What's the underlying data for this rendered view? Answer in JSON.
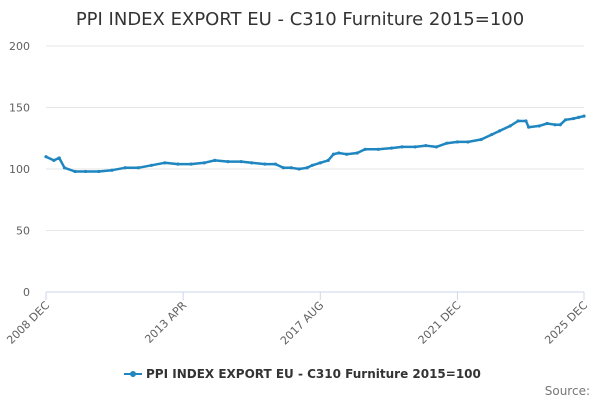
{
  "chart_data": {
    "type": "line",
    "title": "PPI INDEX EXPORT EU - C310 Furniture 2015=100",
    "xlabel": "",
    "ylabel": "",
    "ylim": [
      0,
      200
    ],
    "yticks": [
      0,
      50,
      100,
      150,
      200
    ],
    "xlim": [
      "2008-12",
      "2025-12"
    ],
    "xticks": [
      "2008 DEC",
      "2013 APR",
      "2017 AUG",
      "2021 DEC",
      "2025 DEC"
    ],
    "grid": true,
    "legend_position": "bottom",
    "series": [
      {
        "name": "PPI INDEX EXPORT EU - C310 Furniture 2015=100",
        "color": "#1f86c0",
        "points": [
          [
            "2008-12",
            110
          ],
          [
            "2009-03",
            107
          ],
          [
            "2009-05",
            109
          ],
          [
            "2009-07",
            101
          ],
          [
            "2009-11",
            98
          ],
          [
            "2010-03",
            98
          ],
          [
            "2010-08",
            98
          ],
          [
            "2011-01",
            99
          ],
          [
            "2011-06",
            101
          ],
          [
            "2011-11",
            101
          ],
          [
            "2012-04",
            103
          ],
          [
            "2012-09",
            105
          ],
          [
            "2013-02",
            104
          ],
          [
            "2013-07",
            104
          ],
          [
            "2013-12",
            105
          ],
          [
            "2014-04",
            107
          ],
          [
            "2014-09",
            106
          ],
          [
            "2015-02",
            106
          ],
          [
            "2015-06",
            105
          ],
          [
            "2015-11",
            104
          ],
          [
            "2016-03",
            104
          ],
          [
            "2016-06",
            101
          ],
          [
            "2016-09",
            101
          ],
          [
            "2016-12",
            100
          ],
          [
            "2017-03",
            101
          ],
          [
            "2017-05",
            103
          ],
          [
            "2017-08",
            105
          ],
          [
            "2017-11",
            107
          ],
          [
            "2018-01",
            112
          ],
          [
            "2018-03",
            113
          ],
          [
            "2018-06",
            112
          ],
          [
            "2018-10",
            113
          ],
          [
            "2019-01",
            116
          ],
          [
            "2019-06",
            116
          ],
          [
            "2019-11",
            117
          ],
          [
            "2020-03",
            118
          ],
          [
            "2020-08",
            118
          ],
          [
            "2020-12",
            119
          ],
          [
            "2021-04",
            118
          ],
          [
            "2021-08",
            121
          ],
          [
            "2021-12",
            122
          ],
          [
            "2022-04",
            122
          ],
          [
            "2022-09",
            124
          ],
          [
            "2023-01",
            128
          ],
          [
            "2023-04",
            131
          ],
          [
            "2023-08",
            135
          ],
          [
            "2023-11",
            139
          ],
          [
            "2024-02",
            139
          ],
          [
            "2024-03",
            134
          ],
          [
            "2024-07",
            135
          ],
          [
            "2024-10",
            137
          ],
          [
            "2025-01",
            136
          ],
          [
            "2025-03",
            136
          ],
          [
            "2025-05",
            140
          ],
          [
            "2025-08",
            141
          ],
          [
            "2025-10",
            142
          ],
          [
            "2025-12",
            143
          ]
        ]
      }
    ],
    "source_label": "Source:"
  }
}
